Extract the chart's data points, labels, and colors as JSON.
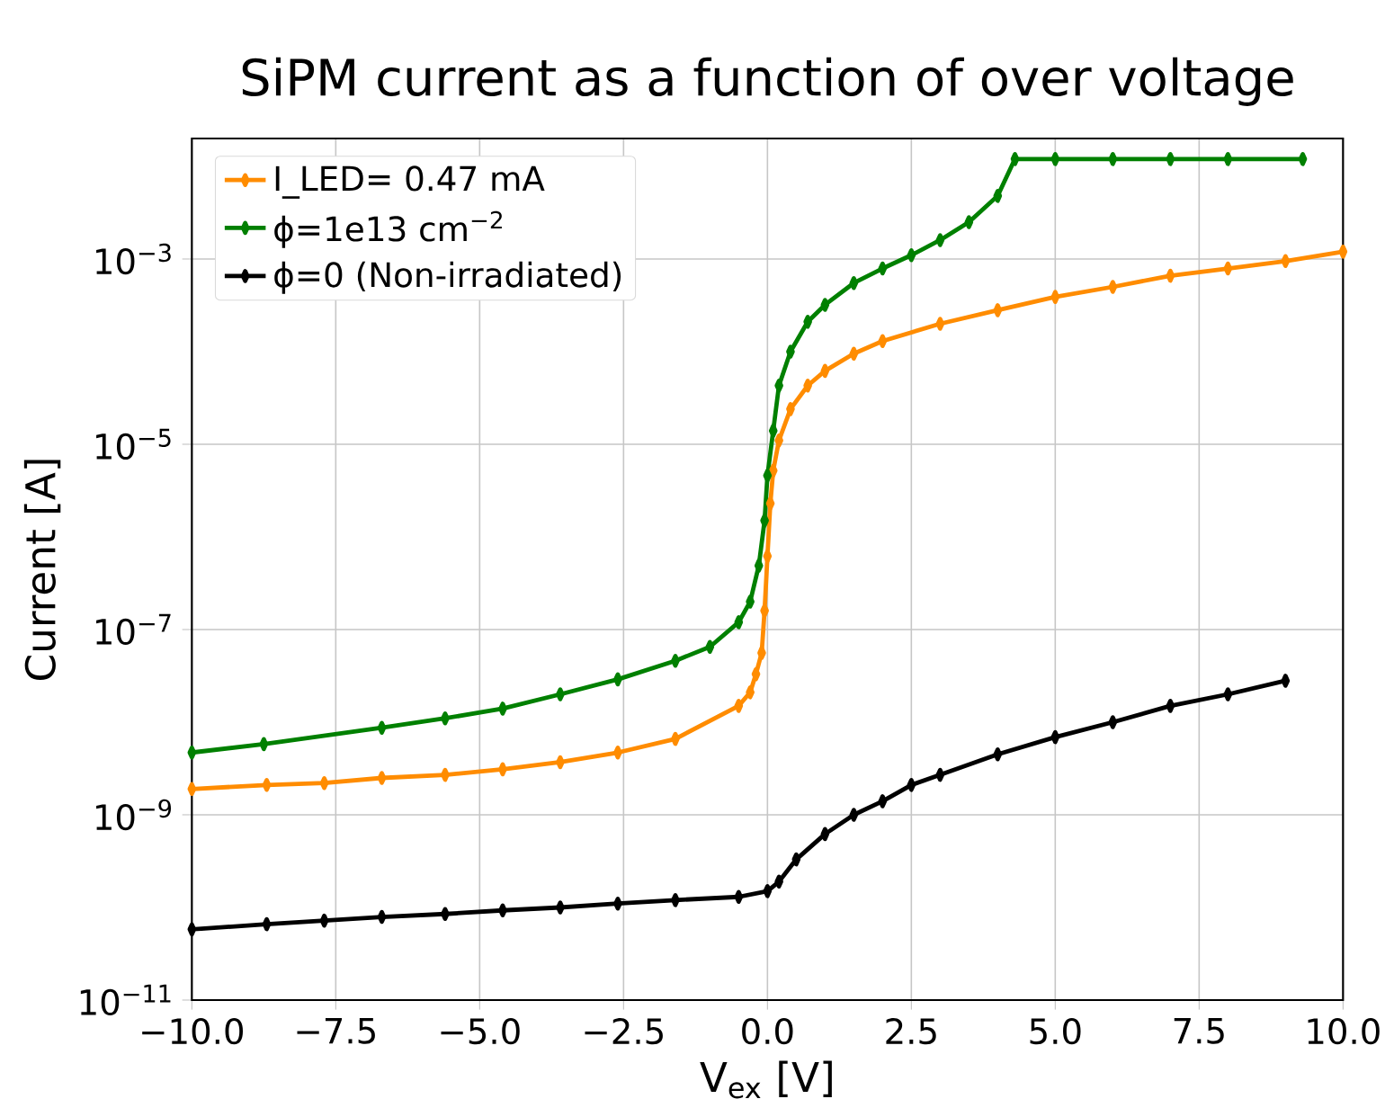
{
  "chart_data": {
    "type": "line",
    "title": "SiPM current as a function of over voltage",
    "xlabel": "V$_{ex}$ [V]",
    "ylabel": "Current [A]",
    "log": "y",
    "grid": true,
    "legend": "top left",
    "marker": "diamond",
    "line_style": "solid",
    "xlim": [
      -10,
      10
    ],
    "ylim": [
      1e-11,
      0.02
    ],
    "xticks": [
      {
        "value": -10,
        "label": "−10.0"
      },
      {
        "value": -7.5,
        "label": "−7.5"
      },
      {
        "value": -5,
        "label": "−5.0"
      },
      {
        "value": -2.5,
        "label": "−2.5"
      },
      {
        "value": 0,
        "label": "0.0"
      },
      {
        "value": 2.5,
        "label": "2.5"
      },
      {
        "value": 5,
        "label": "5.0"
      },
      {
        "value": 7.5,
        "label": "7.5"
      },
      {
        "value": 10,
        "label": "10.0"
      }
    ],
    "yticks": [
      {
        "value": 1e-11,
        "label": "10$^{−11}$"
      },
      {
        "value": 1e-09,
        "label": "10$^{−9}$"
      },
      {
        "value": 1e-07,
        "label": "10$^{−7}$"
      },
      {
        "value": 1e-05,
        "label": "10$^{−5}$"
      },
      {
        "value": 0.001,
        "label": "10$^{−3}$"
      }
    ],
    "series": [
      {
        "name": "I_LED= 0.47 mA",
        "color": "#ff8c00",
        "x": [
          -10,
          -8.7,
          -7.7,
          -6.7,
          -5.6,
          -4.6,
          -3.6,
          -2.6,
          -1.6,
          -0.5,
          -0.3,
          -0.2,
          -0.1,
          -0.05,
          0,
          0.05,
          0.1,
          0.2,
          0.4,
          0.7,
          1,
          1.5,
          2,
          3,
          4,
          5,
          6,
          7,
          8,
          9,
          10
        ],
        "values": [
          1.9e-09,
          2.1e-09,
          2.2e-09,
          2.5e-09,
          2.7e-09,
          3.1e-09,
          3.7e-09,
          4.7e-09,
          6.6e-09,
          1.5e-08,
          2.1e-08,
          3.3e-08,
          5.6e-08,
          1.6e-07,
          6.2e-07,
          2.3e-06,
          5.2e-06,
          1.1e-05,
          2.4e-05,
          4.3e-05,
          6.2e-05,
          9.5e-05,
          0.00013,
          0.0002,
          0.00028,
          0.00039,
          0.0005,
          0.00066,
          0.00079,
          0.00095,
          0.0012
        ]
      },
      {
        "name": "ϕ=1e13 cm$^{−2}$",
        "color": "#008000",
        "x": [
          -10,
          -8.75,
          -6.7,
          -5.6,
          -4.6,
          -3.6,
          -2.6,
          -1.6,
          -1,
          -0.5,
          -0.3,
          -0.15,
          -0.05,
          0,
          0.1,
          0.2,
          0.4,
          0.7,
          1,
          1.5,
          2,
          2.5,
          3,
          3.5,
          4,
          4.3,
          5,
          6,
          7,
          8,
          9.3
        ],
        "values": [
          4.7e-09,
          5.8e-09,
          8.7e-09,
          1.1e-08,
          1.4e-08,
          2e-08,
          2.9e-08,
          4.6e-08,
          6.5e-08,
          1.2e-07,
          2e-07,
          4.9e-07,
          1.5e-06,
          4.6e-06,
          1.4e-05,
          4.3e-05,
          0.0001,
          0.00021,
          0.00032,
          0.00055,
          0.00079,
          0.0011,
          0.0016,
          0.0025,
          0.0048,
          0.012,
          0.012,
          0.012,
          0.012,
          0.012,
          0.012
        ]
      },
      {
        "name": "ϕ=0 (Non-irradiated)",
        "color": "#000000",
        "x": [
          -10,
          -8.7,
          -7.7,
          -6.7,
          -5.6,
          -4.6,
          -3.6,
          -2.6,
          -1.6,
          -0.5,
          0,
          0.2,
          0.5,
          1,
          1.5,
          2,
          2.5,
          3,
          4,
          5,
          6,
          7,
          8,
          9
        ],
        "values": [
          5.8e-11,
          6.6e-11,
          7.2e-11,
          7.9e-11,
          8.5e-11,
          9.3e-11,
          1e-10,
          1.1e-10,
          1.2e-10,
          1.3e-10,
          1.5e-10,
          1.9e-10,
          3.3e-10,
          6.2e-10,
          1e-09,
          1.4e-09,
          2.1e-09,
          2.7e-09,
          4.5e-09,
          6.9e-09,
          1e-08,
          1.5e-08,
          2e-08,
          2.8e-08
        ]
      }
    ]
  }
}
